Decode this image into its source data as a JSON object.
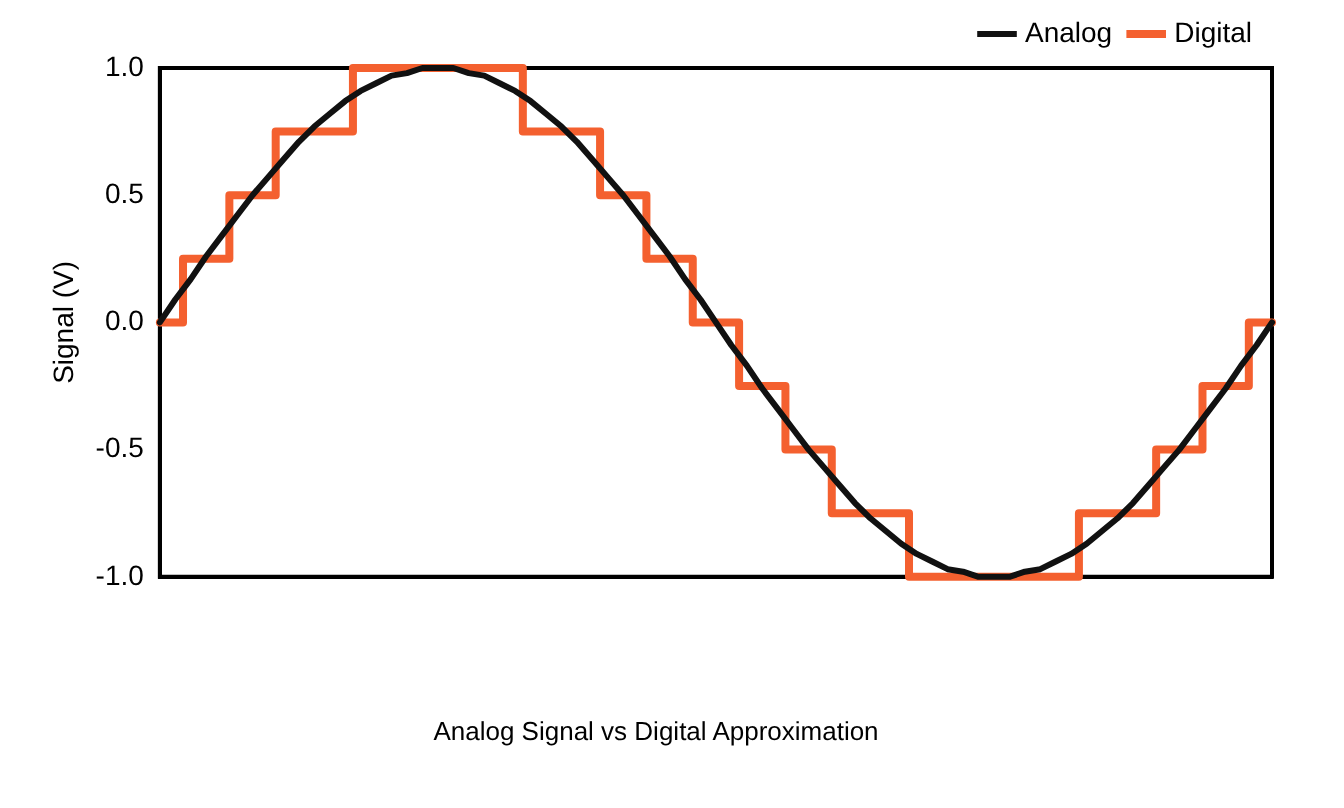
{
  "chart_data": {
    "type": "line",
    "title": "Analog Signal vs Digital Approximation",
    "ylabel": "Signal (V)",
    "categories": [
      null,
      null,
      null,
      null,
      null,
      null,
      null,
      null,
      null,
      null,
      null,
      null,
      null,
      null,
      null,
      null,
      null,
      null,
      null,
      null,
      null,
      null,
      null,
      null,
      null,
      null,
      null,
      null,
      null,
      null,
      null,
      null,
      null,
      null,
      null,
      null,
      null,
      null,
      null,
      null,
      null,
      null,
      null,
      null,
      null,
      null,
      null,
      null,
      null,
      null,
      null,
      null,
      null,
      null,
      null,
      null,
      null,
      null,
      null,
      null,
      null,
      null,
      null,
      null,
      null,
      null,
      null,
      null,
      null,
      null,
      null,
      null,
      null
    ],
    "series": [
      {
        "name": "Analog",
        "color": "#111111",
        "values": [
          0,
          0.09,
          0.17,
          0.26,
          0.34,
          0.42,
          0.5,
          0.57,
          0.64,
          0.71,
          0.77,
          0.82,
          0.87,
          0.91,
          0.94,
          0.97,
          0.98,
          1.0,
          1,
          1.0,
          0.98,
          0.97,
          0.94,
          0.91,
          0.87,
          0.82,
          0.77,
          0.71,
          0.64,
          0.57,
          0.5,
          0.42,
          0.34,
          0.26,
          0.17,
          0.09,
          0,
          -0.09,
          -0.17,
          -0.26,
          -0.34,
          -0.42,
          -0.5,
          -0.57,
          -0.64,
          -0.71,
          -0.77,
          -0.82,
          -0.87,
          -0.91,
          -0.94,
          -0.97,
          -0.98,
          -1.0,
          -1,
          -1.0,
          -0.98,
          -0.97,
          -0.94,
          -0.91,
          -0.87,
          -0.82,
          -0.77,
          -0.71,
          -0.64,
          -0.57,
          -0.5,
          -0.42,
          -0.34,
          -0.26,
          -0.17,
          -0.09,
          0
        ]
      },
      {
        "name": "Digital",
        "type": "step",
        "color": "#f4602f",
        "values": [
          0,
          0,
          0.25,
          0.25,
          0.25,
          0.5,
          0.5,
          0.5,
          0.75,
          0.75,
          0.75,
          0.75,
          0.75,
          1,
          1,
          1,
          1,
          1,
          1,
          1,
          1,
          1,
          1,
          1,
          0.75,
          0.75,
          0.75,
          0.75,
          0.75,
          0.5,
          0.5,
          0.5,
          0.25,
          0.25,
          0.25,
          0,
          0,
          0,
          -0.25,
          -0.25,
          -0.25,
          -0.5,
          -0.5,
          -0.5,
          -0.75,
          -0.75,
          -0.75,
          -0.75,
          -0.75,
          -1,
          -1,
          -1,
          -1,
          -1,
          -1,
          -1,
          -1,
          -1,
          -1,
          -1,
          -0.75,
          -0.75,
          -0.75,
          -0.75,
          -0.75,
          -0.5,
          -0.5,
          -0.5,
          -0.25,
          -0.25,
          -0.25,
          0,
          0
        ]
      }
    ],
    "ylim": [
      -1,
      1
    ],
    "yticks": [
      {
        "value": -1,
        "label": "-1.0"
      },
      {
        "value": -0.5,
        "label": "-0.5"
      },
      {
        "value": 0,
        "label": "0.0"
      },
      {
        "value": 0.5,
        "label": "0.5"
      },
      {
        "value": 1,
        "label": "1.0"
      }
    ],
    "tick_labels": "y",
    "grid": false,
    "legend": "top right",
    "marker": "none",
    "line_style": "solid"
  }
}
